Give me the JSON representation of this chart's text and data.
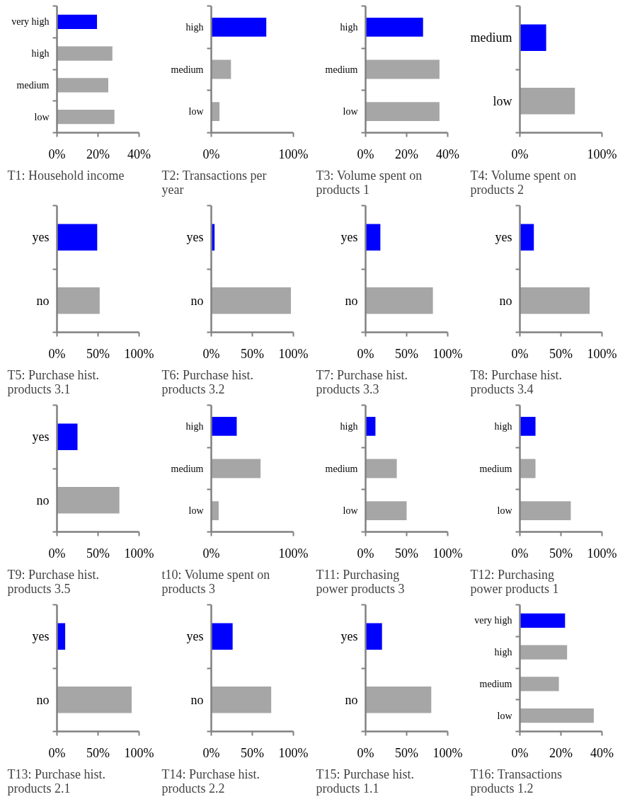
{
  "chart_data": [
    {
      "type": "bar",
      "orientation": "horizontal",
      "title": "T1: Household income",
      "categories": [
        "very high",
        "high",
        "medium",
        "low"
      ],
      "values": [
        19.5,
        27,
        25,
        28
      ],
      "colors": [
        "#0000ff",
        "#a6a6a6",
        "#a6a6a6",
        "#a6a6a6"
      ],
      "xlim": [
        0,
        40
      ],
      "xticks": [
        {
          "value": 0,
          "label": "0%"
        },
        {
          "value": 20,
          "label": "20%"
        },
        {
          "value": 40,
          "label": "40%"
        }
      ],
      "grid": false
    },
    {
      "type": "bar",
      "orientation": "horizontal",
      "title": "T2: Transactions per year",
      "categories": [
        "high",
        "medium",
        "low"
      ],
      "values": [
        67,
        24,
        10
      ],
      "colors": [
        "#0000ff",
        "#a6a6a6",
        "#a6a6a6"
      ],
      "xlim": [
        0,
        100
      ],
      "xticks": [
        {
          "value": 0,
          "label": "0%"
        },
        {
          "value": 100,
          "label": "100%"
        }
      ],
      "grid": false
    },
    {
      "type": "bar",
      "orientation": "horizontal",
      "title": "T3: Volume spent on products 1",
      "categories": [
        "high",
        "medium",
        "low"
      ],
      "values": [
        28,
        36,
        36
      ],
      "colors": [
        "#0000ff",
        "#a6a6a6",
        "#a6a6a6"
      ],
      "xlim": [
        0,
        40
      ],
      "xticks": [
        {
          "value": 0,
          "label": "0%"
        },
        {
          "value": 20,
          "label": "20%"
        },
        {
          "value": 40,
          "label": "40%"
        }
      ],
      "grid": false
    },
    {
      "type": "bar",
      "orientation": "horizontal",
      "title": "T4: Volume spent on products 2",
      "categories": [
        "medium",
        "low"
      ],
      "values": [
        32,
        67
      ],
      "colors": [
        "#0000ff",
        "#a6a6a6"
      ],
      "xlim": [
        0,
        100
      ],
      "xticks": [
        {
          "value": 0,
          "label": "0%"
        },
        {
          "value": 100,
          "label": "100%"
        }
      ],
      "grid": false
    },
    {
      "type": "bar",
      "orientation": "horizontal",
      "title": "T5: Purchase hist. products 3.1",
      "categories": [
        "yes",
        "no"
      ],
      "values": [
        49,
        52
      ],
      "colors": [
        "#0000ff",
        "#a6a6a6"
      ],
      "xlim": [
        0,
        100
      ],
      "xticks": [
        {
          "value": 0,
          "label": "0%"
        },
        {
          "value": 50,
          "label": "50%"
        },
        {
          "value": 100,
          "label": "100%"
        }
      ],
      "grid": false
    },
    {
      "type": "bar",
      "orientation": "horizontal",
      "title": "T6: Purchase hist. products 3.2",
      "categories": [
        "yes",
        "no"
      ],
      "values": [
        4,
        97
      ],
      "colors": [
        "#0000ff",
        "#a6a6a6"
      ],
      "xlim": [
        0,
        100
      ],
      "xticks": [
        {
          "value": 0,
          "label": "0%"
        },
        {
          "value": 50,
          "label": "50%"
        },
        {
          "value": 100,
          "label": "100%"
        }
      ],
      "grid": false
    },
    {
      "type": "bar",
      "orientation": "horizontal",
      "title": "T7: Purchase hist. products 3.3",
      "categories": [
        "yes",
        "no"
      ],
      "values": [
        18,
        82
      ],
      "colors": [
        "#0000ff",
        "#a6a6a6"
      ],
      "xlim": [
        0,
        100
      ],
      "xticks": [
        {
          "value": 0,
          "label": "0%"
        },
        {
          "value": 50,
          "label": "50%"
        },
        {
          "value": 100,
          "label": "100%"
        }
      ],
      "grid": false
    },
    {
      "type": "bar",
      "orientation": "horizontal",
      "title": "T8: Purchase hist. products 3.4",
      "categories": [
        "yes",
        "no"
      ],
      "values": [
        17,
        85
      ],
      "colors": [
        "#0000ff",
        "#a6a6a6"
      ],
      "xlim": [
        0,
        100
      ],
      "xticks": [
        {
          "value": 0,
          "label": "0%"
        },
        {
          "value": 50,
          "label": "50%"
        },
        {
          "value": 100,
          "label": "100%"
        }
      ],
      "grid": false
    },
    {
      "type": "bar",
      "orientation": "horizontal",
      "title": "T9: Purchase hist. products 3.5",
      "categories": [
        "yes",
        "no"
      ],
      "values": [
        25,
        76
      ],
      "colors": [
        "#0000ff",
        "#a6a6a6"
      ],
      "xlim": [
        0,
        100
      ],
      "xticks": [
        {
          "value": 0,
          "label": "0%"
        },
        {
          "value": 50,
          "label": "50%"
        },
        {
          "value": 100,
          "label": "100%"
        }
      ],
      "grid": false
    },
    {
      "type": "bar",
      "orientation": "horizontal",
      "title": "t10: Volume spent on products 3",
      "categories": [
        "high",
        "medium",
        "low"
      ],
      "values": [
        31,
        60,
        9
      ],
      "colors": [
        "#0000ff",
        "#a6a6a6",
        "#a6a6a6"
      ],
      "xlim": [
        0,
        100
      ],
      "xticks": [
        {
          "value": 0,
          "label": "0%"
        },
        {
          "value": 100,
          "label": "100%"
        }
      ],
      "grid": false
    },
    {
      "type": "bar",
      "orientation": "horizontal",
      "title": "T11: Purchasing power products 3",
      "categories": [
        "high",
        "medium",
        "low"
      ],
      "values": [
        12,
        38,
        50
      ],
      "colors": [
        "#0000ff",
        "#a6a6a6",
        "#a6a6a6"
      ],
      "xlim": [
        0,
        100
      ],
      "xticks": [
        {
          "value": 0,
          "label": "0%"
        },
        {
          "value": 50,
          "label": "50%"
        },
        {
          "value": 100,
          "label": "100%"
        }
      ],
      "grid": false
    },
    {
      "type": "bar",
      "orientation": "horizontal",
      "title": "T12: Purchasing power products 1",
      "categories": [
        "high",
        "medium",
        "low"
      ],
      "values": [
        19,
        19,
        62
      ],
      "colors": [
        "#0000ff",
        "#a6a6a6",
        "#a6a6a6"
      ],
      "xlim": [
        0,
        100
      ],
      "xticks": [
        {
          "value": 0,
          "label": "0%"
        },
        {
          "value": 50,
          "label": "50%"
        },
        {
          "value": 100,
          "label": "100%"
        }
      ],
      "grid": false
    },
    {
      "type": "bar",
      "orientation": "horizontal",
      "title": "T13: Purchase hist. products 2.1",
      "categories": [
        "yes",
        "no"
      ],
      "values": [
        10,
        91
      ],
      "colors": [
        "#0000ff",
        "#a6a6a6"
      ],
      "xlim": [
        0,
        100
      ],
      "xticks": [
        {
          "value": 0,
          "label": "0%"
        },
        {
          "value": 50,
          "label": "50%"
        },
        {
          "value": 100,
          "label": "100%"
        }
      ],
      "grid": false
    },
    {
      "type": "bar",
      "orientation": "horizontal",
      "title": "T14: Purchase hist. products 2.2",
      "categories": [
        "yes",
        "no"
      ],
      "values": [
        26,
        73
      ],
      "colors": [
        "#0000ff",
        "#a6a6a6"
      ],
      "xlim": [
        0,
        100
      ],
      "xticks": [
        {
          "value": 0,
          "label": "0%"
        },
        {
          "value": 50,
          "label": "50%"
        },
        {
          "value": 100,
          "label": "100%"
        }
      ],
      "grid": false
    },
    {
      "type": "bar",
      "orientation": "horizontal",
      "title": "T15: Purchase hist. products 1.1",
      "categories": [
        "yes",
        "no"
      ],
      "values": [
        20,
        80
      ],
      "colors": [
        "#0000ff",
        "#a6a6a6"
      ],
      "xlim": [
        0,
        100
      ],
      "xticks": [
        {
          "value": 0,
          "label": "0%"
        },
        {
          "value": 50,
          "label": "50%"
        },
        {
          "value": 100,
          "label": "100%"
        }
      ],
      "grid": false
    },
    {
      "type": "bar",
      "orientation": "horizontal",
      "title": "T16: Transactions products 1.2",
      "categories": [
        "very high",
        "high",
        "medium",
        "low"
      ],
      "values": [
        22,
        23,
        19,
        36
      ],
      "colors": [
        "#0000ff",
        "#a6a6a6",
        "#a6a6a6",
        "#a6a6a6"
      ],
      "xlim": [
        0,
        40
      ],
      "xticks": [
        {
          "value": 0,
          "label": "0%"
        },
        {
          "value": 20,
          "label": "20%"
        },
        {
          "value": 40,
          "label": "40%"
        }
      ],
      "grid": false
    }
  ]
}
